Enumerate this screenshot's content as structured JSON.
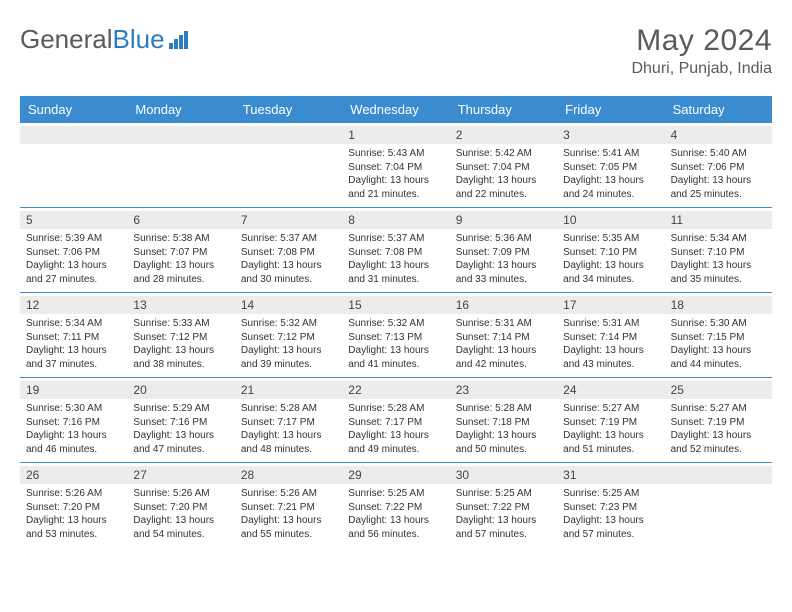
{
  "logo": {
    "part1": "General",
    "part2": "Blue"
  },
  "title": "May 2024",
  "location": "Dhuri, Punjab, India",
  "day_names": [
    "Sunday",
    "Monday",
    "Tuesday",
    "Wednesday",
    "Thursday",
    "Friday",
    "Saturday"
  ],
  "colors": {
    "header_bg": "#3a8bd0",
    "header_text": "#ffffff",
    "daynum_bg": "#ececec",
    "border": "#3a8bd0",
    "logo_blue": "#2b7cc0",
    "text_gray": "#5a5a5a"
  },
  "weeks": [
    [
      {
        "day": "",
        "lines": []
      },
      {
        "day": "",
        "lines": []
      },
      {
        "day": "",
        "lines": []
      },
      {
        "day": "1",
        "lines": [
          "Sunrise: 5:43 AM",
          "Sunset: 7:04 PM",
          "Daylight: 13 hours and 21 minutes."
        ]
      },
      {
        "day": "2",
        "lines": [
          "Sunrise: 5:42 AM",
          "Sunset: 7:04 PM",
          "Daylight: 13 hours and 22 minutes."
        ]
      },
      {
        "day": "3",
        "lines": [
          "Sunrise: 5:41 AM",
          "Sunset: 7:05 PM",
          "Daylight: 13 hours and 24 minutes."
        ]
      },
      {
        "day": "4",
        "lines": [
          "Sunrise: 5:40 AM",
          "Sunset: 7:06 PM",
          "Daylight: 13 hours and 25 minutes."
        ]
      }
    ],
    [
      {
        "day": "5",
        "lines": [
          "Sunrise: 5:39 AM",
          "Sunset: 7:06 PM",
          "Daylight: 13 hours and 27 minutes."
        ]
      },
      {
        "day": "6",
        "lines": [
          "Sunrise: 5:38 AM",
          "Sunset: 7:07 PM",
          "Daylight: 13 hours and 28 minutes."
        ]
      },
      {
        "day": "7",
        "lines": [
          "Sunrise: 5:37 AM",
          "Sunset: 7:08 PM",
          "Daylight: 13 hours and 30 minutes."
        ]
      },
      {
        "day": "8",
        "lines": [
          "Sunrise: 5:37 AM",
          "Sunset: 7:08 PM",
          "Daylight: 13 hours and 31 minutes."
        ]
      },
      {
        "day": "9",
        "lines": [
          "Sunrise: 5:36 AM",
          "Sunset: 7:09 PM",
          "Daylight: 13 hours and 33 minutes."
        ]
      },
      {
        "day": "10",
        "lines": [
          "Sunrise: 5:35 AM",
          "Sunset: 7:10 PM",
          "Daylight: 13 hours and 34 minutes."
        ]
      },
      {
        "day": "11",
        "lines": [
          "Sunrise: 5:34 AM",
          "Sunset: 7:10 PM",
          "Daylight: 13 hours and 35 minutes."
        ]
      }
    ],
    [
      {
        "day": "12",
        "lines": [
          "Sunrise: 5:34 AM",
          "Sunset: 7:11 PM",
          "Daylight: 13 hours and 37 minutes."
        ]
      },
      {
        "day": "13",
        "lines": [
          "Sunrise: 5:33 AM",
          "Sunset: 7:12 PM",
          "Daylight: 13 hours and 38 minutes."
        ]
      },
      {
        "day": "14",
        "lines": [
          "Sunrise: 5:32 AM",
          "Sunset: 7:12 PM",
          "Daylight: 13 hours and 39 minutes."
        ]
      },
      {
        "day": "15",
        "lines": [
          "Sunrise: 5:32 AM",
          "Sunset: 7:13 PM",
          "Daylight: 13 hours and 41 minutes."
        ]
      },
      {
        "day": "16",
        "lines": [
          "Sunrise: 5:31 AM",
          "Sunset: 7:14 PM",
          "Daylight: 13 hours and 42 minutes."
        ]
      },
      {
        "day": "17",
        "lines": [
          "Sunrise: 5:31 AM",
          "Sunset: 7:14 PM",
          "Daylight: 13 hours and 43 minutes."
        ]
      },
      {
        "day": "18",
        "lines": [
          "Sunrise: 5:30 AM",
          "Sunset: 7:15 PM",
          "Daylight: 13 hours and 44 minutes."
        ]
      }
    ],
    [
      {
        "day": "19",
        "lines": [
          "Sunrise: 5:30 AM",
          "Sunset: 7:16 PM",
          "Daylight: 13 hours and 46 minutes."
        ]
      },
      {
        "day": "20",
        "lines": [
          "Sunrise: 5:29 AM",
          "Sunset: 7:16 PM",
          "Daylight: 13 hours and 47 minutes."
        ]
      },
      {
        "day": "21",
        "lines": [
          "Sunrise: 5:28 AM",
          "Sunset: 7:17 PM",
          "Daylight: 13 hours and 48 minutes."
        ]
      },
      {
        "day": "22",
        "lines": [
          "Sunrise: 5:28 AM",
          "Sunset: 7:17 PM",
          "Daylight: 13 hours and 49 minutes."
        ]
      },
      {
        "day": "23",
        "lines": [
          "Sunrise: 5:28 AM",
          "Sunset: 7:18 PM",
          "Daylight: 13 hours and 50 minutes."
        ]
      },
      {
        "day": "24",
        "lines": [
          "Sunrise: 5:27 AM",
          "Sunset: 7:19 PM",
          "Daylight: 13 hours and 51 minutes."
        ]
      },
      {
        "day": "25",
        "lines": [
          "Sunrise: 5:27 AM",
          "Sunset: 7:19 PM",
          "Daylight: 13 hours and 52 minutes."
        ]
      }
    ],
    [
      {
        "day": "26",
        "lines": [
          "Sunrise: 5:26 AM",
          "Sunset: 7:20 PM",
          "Daylight: 13 hours and 53 minutes."
        ]
      },
      {
        "day": "27",
        "lines": [
          "Sunrise: 5:26 AM",
          "Sunset: 7:20 PM",
          "Daylight: 13 hours and 54 minutes."
        ]
      },
      {
        "day": "28",
        "lines": [
          "Sunrise: 5:26 AM",
          "Sunset: 7:21 PM",
          "Daylight: 13 hours and 55 minutes."
        ]
      },
      {
        "day": "29",
        "lines": [
          "Sunrise: 5:25 AM",
          "Sunset: 7:22 PM",
          "Daylight: 13 hours and 56 minutes."
        ]
      },
      {
        "day": "30",
        "lines": [
          "Sunrise: 5:25 AM",
          "Sunset: 7:22 PM",
          "Daylight: 13 hours and 57 minutes."
        ]
      },
      {
        "day": "31",
        "lines": [
          "Sunrise: 5:25 AM",
          "Sunset: 7:23 PM",
          "Daylight: 13 hours and 57 minutes."
        ]
      },
      {
        "day": "",
        "lines": []
      }
    ]
  ]
}
